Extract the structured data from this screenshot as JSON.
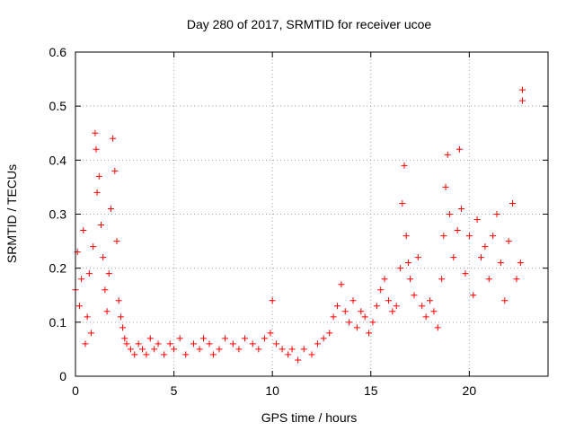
{
  "chart_data": {
    "type": "scatter",
    "title": "Day 280 of 2017, SRMTID for receiver ucoe",
    "xlabel": "GPS time / hours",
    "ylabel": "SRMTID / TECUs",
    "xlim": [
      0,
      24
    ],
    "ylim": [
      0,
      0.6
    ],
    "xticks": [
      0,
      5,
      10,
      15,
      20
    ],
    "yticks": [
      0,
      0.1,
      0.2,
      0.3,
      0.4,
      0.5,
      0.6
    ],
    "grid": true,
    "marker": "+",
    "marker_color": "#ff0000",
    "series": [
      {
        "name": "SRMTID",
        "x": [
          0.0,
          0.1,
          0.2,
          0.3,
          0.4,
          0.5,
          0.6,
          0.7,
          0.8,
          0.9,
          1.0,
          1.05,
          1.1,
          1.2,
          1.3,
          1.4,
          1.5,
          1.6,
          1.7,
          1.8,
          1.9,
          2.0,
          2.1,
          2.2,
          2.3,
          2.4,
          2.5,
          2.6,
          2.8,
          3.0,
          3.2,
          3.4,
          3.6,
          3.8,
          4.0,
          4.2,
          4.5,
          4.8,
          5.0,
          5.3,
          5.6,
          6.0,
          6.3,
          6.5,
          6.8,
          7.0,
          7.3,
          7.6,
          8.0,
          8.3,
          8.6,
          9.0,
          9.3,
          9.6,
          9.9,
          10.0,
          10.2,
          10.5,
          10.8,
          11.0,
          11.3,
          11.6,
          12.0,
          12.3,
          12.6,
          12.9,
          13.1,
          13.3,
          13.5,
          13.7,
          13.9,
          14.1,
          14.3,
          14.5,
          14.7,
          14.9,
          15.1,
          15.3,
          15.5,
          15.7,
          15.9,
          16.1,
          16.3,
          16.5,
          16.6,
          16.7,
          16.8,
          16.9,
          17.0,
          17.2,
          17.4,
          17.6,
          17.8,
          18.0,
          18.2,
          18.4,
          18.6,
          18.7,
          18.8,
          18.9,
          19.0,
          19.2,
          19.4,
          19.5,
          19.6,
          19.8,
          20.0,
          20.2,
          20.4,
          20.6,
          20.8,
          21.0,
          21.2,
          21.4,
          21.6,
          21.8,
          22.0,
          22.2,
          22.4,
          22.6,
          22.7,
          22.7
        ],
        "y": [
          0.16,
          0.23,
          0.13,
          0.18,
          0.27,
          0.06,
          0.11,
          0.19,
          0.08,
          0.24,
          0.45,
          0.42,
          0.34,
          0.37,
          0.28,
          0.22,
          0.16,
          0.12,
          0.19,
          0.31,
          0.44,
          0.38,
          0.25,
          0.14,
          0.11,
          0.09,
          0.07,
          0.06,
          0.05,
          0.04,
          0.06,
          0.05,
          0.04,
          0.07,
          0.05,
          0.06,
          0.04,
          0.06,
          0.05,
          0.07,
          0.04,
          0.06,
          0.05,
          0.07,
          0.06,
          0.04,
          0.05,
          0.07,
          0.06,
          0.05,
          0.07,
          0.06,
          0.05,
          0.07,
          0.08,
          0.14,
          0.06,
          0.05,
          0.04,
          0.05,
          0.03,
          0.05,
          0.04,
          0.06,
          0.07,
          0.08,
          0.11,
          0.13,
          0.17,
          0.12,
          0.1,
          0.14,
          0.09,
          0.12,
          0.11,
          0.08,
          0.1,
          0.13,
          0.16,
          0.18,
          0.14,
          0.12,
          0.13,
          0.2,
          0.32,
          0.39,
          0.26,
          0.21,
          0.18,
          0.15,
          0.22,
          0.13,
          0.11,
          0.14,
          0.12,
          0.09,
          0.18,
          0.26,
          0.35,
          0.41,
          0.3,
          0.22,
          0.27,
          0.42,
          0.31,
          0.19,
          0.26,
          0.15,
          0.29,
          0.22,
          0.24,
          0.18,
          0.26,
          0.3,
          0.21,
          0.14,
          0.25,
          0.32,
          0.18,
          0.21,
          0.53,
          0.51
        ]
      }
    ]
  }
}
